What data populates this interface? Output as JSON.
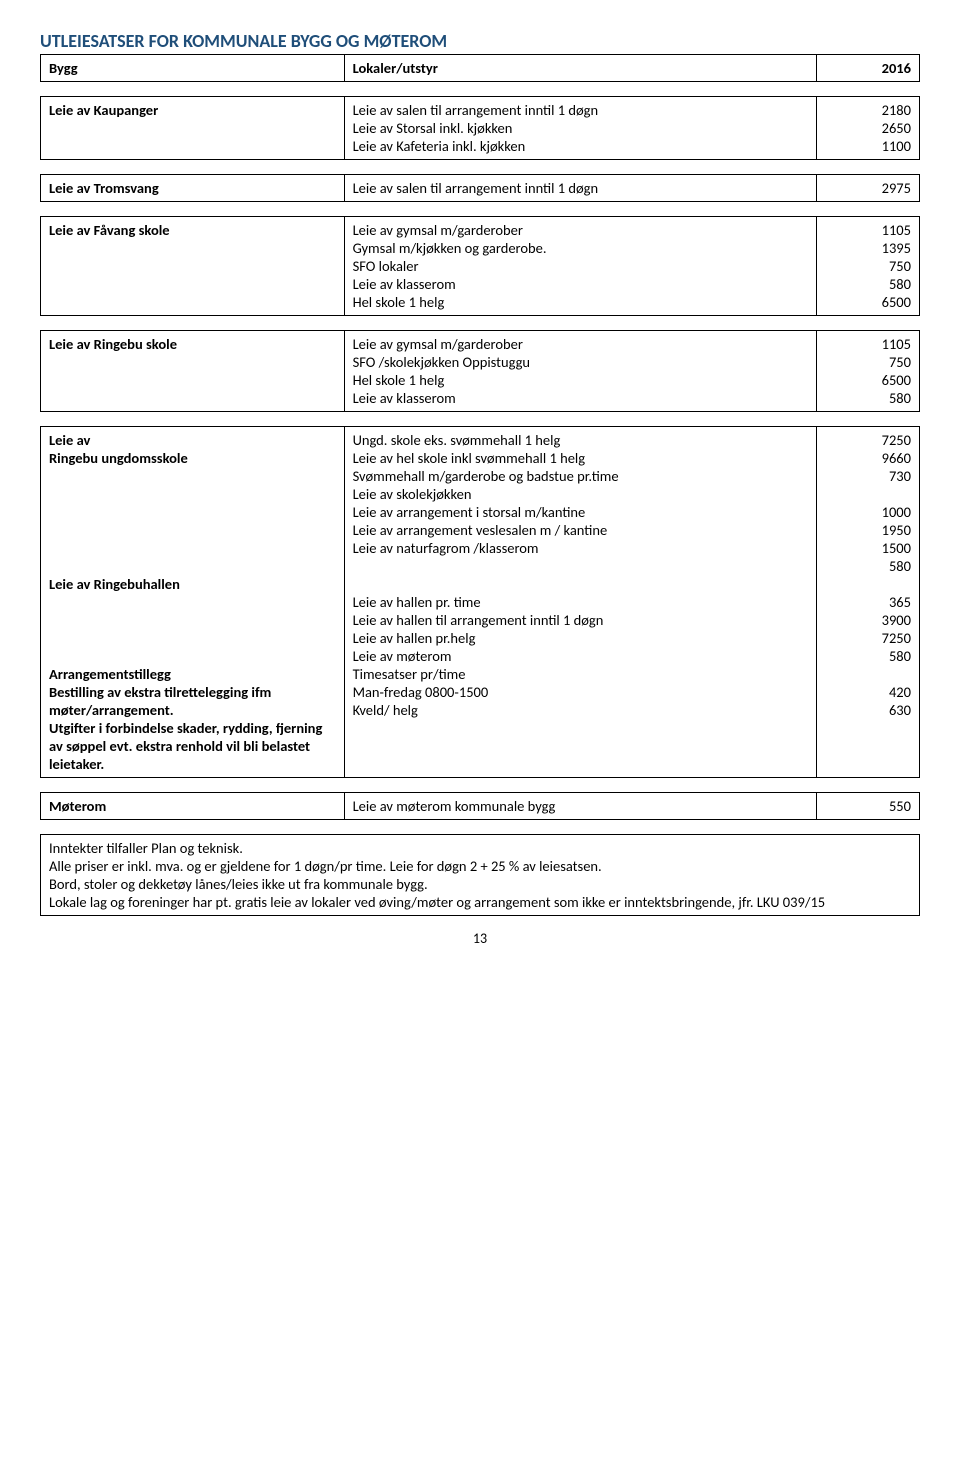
{
  "title": "UTLEIESATSER FOR  KOMMUNALE BYGG OG MØTEROM",
  "header": {
    "bygg": "Bygg",
    "lokaler": "Lokaler/utstyr",
    "year": "2016"
  },
  "kaupanger": {
    "label": "Leie av Kaupanger",
    "l1": "Leie av salen til arrangement inntil 1 døgn",
    "p1": "2180",
    "l2": "Leie av Storsal inkl. kjøkken",
    "p2": "2650",
    "l3": "Leie av Kafeteria inkl. kjøkken",
    "p3": "1100"
  },
  "tromsvang": {
    "label": "Leie av Tromsvang",
    "l1": "Leie av salen til arrangement inntil 1 døgn",
    "p1": "2975"
  },
  "favang": {
    "label": "Leie av Fåvang skole",
    "l1": "Leie av gymsal m/garderober",
    "p1": "1105",
    "l2": "Gymsal m/kjøkken og garderobe.",
    "p2": "1395",
    "l3": "SFO lokaler",
    "p3": "750",
    "l4": "Leie av klasserom",
    "p4": "580",
    "l5": "Hel skole 1 helg",
    "p5": "6500"
  },
  "ringebu_skole": {
    "label": "Leie av Ringebu skole",
    "l1": "Leie av gymsal m/garderober",
    "p1": "1105",
    "l2": "SFO /skolekjøkken Oppistuggu",
    "p2": "750",
    "l3": "Hel skole 1 helg",
    "p3": "6500",
    "l4": "Leie av klasserom",
    "p4": "580"
  },
  "ungdomsskole": {
    "label1": "Leie av",
    "label2": "Ringebu ungdomsskole",
    "l1": "Ungd. skole eks. svømmehall 1 helg",
    "p1": "7250",
    "l2": "Leie av hel skole inkl svømmehall 1 helg",
    "p2": "9660",
    "l3": "Svømmehall m/garderobe og badstue pr.time",
    "p3": "730",
    "l4": "Leie av skolekjøkken",
    "l5": "Leie av arrangement i storsal m/kantine",
    "p5": "1000",
    "l6": "Leie av arrangement veslesalen m / kantine",
    "p6": "1950",
    "l7": "Leie av naturfagrom /klasserom",
    "p7": "1500",
    "p8": "580"
  },
  "ringebuhallen": {
    "label": "Leie av Ringebuhallen",
    "l1": "Leie av hallen pr. time",
    "p1": "365",
    "l2": "Leie av hallen til arrangement inntil 1 døgn",
    "p2": "3900",
    "l3": "Leie av hallen pr.helg",
    "p3": "7250",
    "l4": "Leie av møterom",
    "p4": "580"
  },
  "arrangement": {
    "label1": "Arrangementstillegg",
    "label2": "Bestilling av ekstra tilrettelegging ifm møter/arrangement.",
    "label3": "Utgifter i forbindelse skader, rydding, fjerning av søppel evt. ekstra renhold vil bli belastet leietaker.",
    "l1": "Timesatser pr/time",
    "l2": "Man-fredag 0800-1500",
    "p2": "420",
    "l3": "Kveld/ helg",
    "p3": "630"
  },
  "moterom": {
    "label": "Møterom",
    "l1": "Leie av møterom kommunale bygg",
    "p1": "550"
  },
  "notes": {
    "n1": "Inntekter tilfaller Plan og teknisk.",
    "n2": "Alle priser er inkl. mva. og er gjeldene for 1 døgn/pr time. Leie for døgn 2 + 25 % av leiesatsen.",
    "n3": "Bord, stoler og dekketøy lånes/leies ikke ut fra kommunale bygg.",
    "n4": "Lokale lag og foreninger har pt. gratis leie av lokaler ved øving/møter og arrangement som ikke er inntektsbringende, jfr. LKU 039/15"
  },
  "page_number": "13"
}
